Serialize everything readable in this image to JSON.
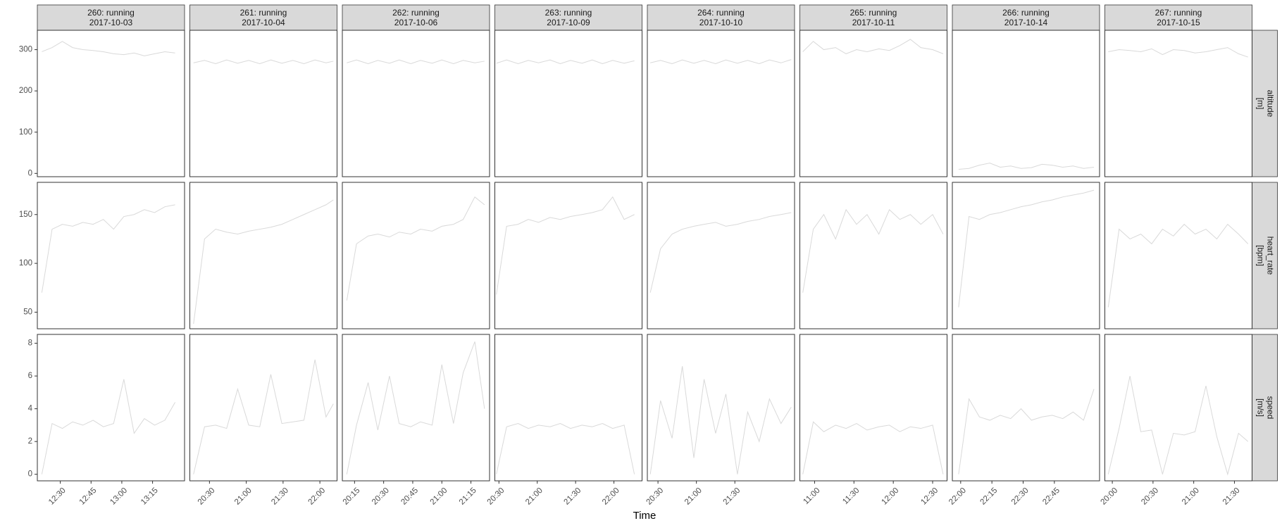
{
  "chart_data": {
    "type": "line",
    "x_label": "Time",
    "color": "#d9d9d9",
    "grid": false,
    "columns": [
      {
        "title": "260: running",
        "date": "2017-10-03",
        "xlim": [
          738.8,
          810.6
        ],
        "xticks": [
          {
            "value": 750,
            "label": "12:30"
          },
          {
            "value": 765,
            "label": "12:45"
          },
          {
            "value": 780,
            "label": "13:00"
          },
          {
            "value": 795,
            "label": "13:15"
          }
        ],
        "x": [
          741,
          746,
          751,
          756,
          761,
          766,
          771,
          776,
          781,
          786,
          791,
          796,
          801,
          806
        ]
      },
      {
        "title": "261: running",
        "date": "2017-10-04",
        "xlim": [
          1214,
          1334
        ],
        "xticks": [
          {
            "value": 1230,
            "label": "20:30"
          },
          {
            "value": 1260,
            "label": "21:00"
          },
          {
            "value": 1290,
            "label": "21:30"
          },
          {
            "value": 1320,
            "label": "22:00"
          }
        ],
        "x": [
          1217,
          1226,
          1235,
          1244,
          1253,
          1262,
          1271,
          1280,
          1289,
          1298,
          1307,
          1316,
          1325,
          1331
        ]
      },
      {
        "title": "262: running",
        "date": "2017-10-06",
        "xlim": [
          1208.7,
          1284.6
        ],
        "xticks": [
          {
            "value": 1215,
            "label": "20:15"
          },
          {
            "value": 1230,
            "label": "20:30"
          },
          {
            "value": 1245,
            "label": "20:45"
          },
          {
            "value": 1260,
            "label": "21:00"
          },
          {
            "value": 1275,
            "label": "21:15"
          }
        ],
        "x": [
          1211,
          1216,
          1222,
          1227,
          1233,
          1238,
          1244,
          1249,
          1255,
          1260,
          1266,
          1271,
          1277,
          1282
        ]
      },
      {
        "title": "263: running",
        "date": "2017-10-09",
        "xlim": [
          1226.8,
          1342
        ],
        "xticks": [
          {
            "value": 1230,
            "label": "20:30"
          },
          {
            "value": 1260,
            "label": "21:00"
          },
          {
            "value": 1290,
            "label": "21:30"
          },
          {
            "value": 1320,
            "label": "22:00"
          }
        ],
        "x": [
          1228,
          1236,
          1245,
          1253,
          1261,
          1270,
          1278,
          1286,
          1295,
          1303,
          1311,
          1319,
          1328,
          1336
        ]
      },
      {
        "title": "264: running",
        "date": "2017-10-10",
        "xlim": [
          1221.7,
          1336.6
        ],
        "xticks": [
          {
            "value": 1230,
            "label": "20:30"
          },
          {
            "value": 1260,
            "label": "21:00"
          },
          {
            "value": 1290,
            "label": "21:30"
          }
        ],
        "x": [
          1224,
          1232,
          1241,
          1249,
          1258,
          1266,
          1275,
          1283,
          1292,
          1300,
          1309,
          1317,
          1326,
          1334
        ]
      },
      {
        "title": "265: running",
        "date": "2017-10-11",
        "xlim": [
          648.75,
          761
        ],
        "xticks": [
          {
            "value": 660,
            "label": "11:00"
          },
          {
            "value": 690,
            "label": "11:30"
          },
          {
            "value": 720,
            "label": "12:00"
          },
          {
            "value": 750,
            "label": "12:30"
          }
        ],
        "x": [
          651,
          659,
          667,
          676,
          684,
          692,
          700,
          709,
          717,
          725,
          733,
          741,
          750,
          758
        ]
      },
      {
        "title": "266: running",
        "date": "2017-10-14",
        "xlim": [
          1316,
          1386.7
        ],
        "xticks": [
          {
            "value": 1320,
            "label": "22:00"
          },
          {
            "value": 1335,
            "label": "22:15"
          },
          {
            "value": 1350,
            "label": "22:30"
          },
          {
            "value": 1365,
            "label": "22:45"
          }
        ],
        "x": [
          1319,
          1324,
          1329,
          1334,
          1339,
          1344,
          1349,
          1354,
          1359,
          1364,
          1369,
          1374,
          1379,
          1384
        ]
      },
      {
        "title": "267: running",
        "date": "2017-10-15",
        "xlim": [
          1194.5,
          1303
        ],
        "xticks": [
          {
            "value": 1200,
            "label": "20:00"
          },
          {
            "value": 1230,
            "label": "20:30"
          },
          {
            "value": 1260,
            "label": "21:00"
          },
          {
            "value": 1290,
            "label": "21:30"
          }
        ],
        "x": [
          1197,
          1205,
          1213,
          1221,
          1229,
          1237,
          1245,
          1253,
          1261,
          1269,
          1277,
          1285,
          1293,
          1300
        ]
      }
    ],
    "rows": [
      {
        "strip": [
          "altitude",
          "[m]"
        ],
        "ylim": [
          -8,
          347
        ],
        "yticks": [
          0,
          100,
          200,
          300
        ],
        "panels": [
          [
            295,
            305,
            320,
            305,
            300,
            298,
            295,
            290,
            288,
            292,
            285,
            290,
            295,
            292
          ],
          [
            268,
            274,
            266,
            275,
            267,
            274,
            266,
            275,
            267,
            274,
            266,
            275,
            268,
            272
          ],
          [
            268,
            275,
            266,
            274,
            267,
            275,
            266,
            274,
            267,
            275,
            266,
            274,
            268,
            272
          ],
          [
            267,
            275,
            266,
            274,
            268,
            275,
            266,
            274,
            267,
            275,
            266,
            274,
            267,
            273
          ],
          [
            268,
            274,
            266,
            275,
            267,
            274,
            266,
            275,
            267,
            274,
            266,
            275,
            268,
            276
          ],
          [
            295,
            320,
            300,
            305,
            290,
            300,
            295,
            302,
            298,
            310,
            325,
            305,
            300,
            290
          ],
          [
            10,
            12,
            20,
            25,
            15,
            18,
            12,
            14,
            22,
            20,
            15,
            18,
            12,
            15
          ],
          [
            295,
            300,
            298,
            295,
            302,
            288,
            300,
            298,
            292,
            295,
            300,
            305,
            290,
            282
          ]
        ]
      },
      {
        "strip": [
          "heart_rate",
          "[bpm]"
        ],
        "ylim": [
          33,
          183
        ],
        "yticks": [
          50,
          100,
          150
        ],
        "panels": [
          [
            70,
            135,
            140,
            138,
            142,
            140,
            145,
            135,
            148,
            150,
            155,
            152,
            158,
            160
          ],
          [
            38,
            125,
            135,
            132,
            130,
            133,
            135,
            137,
            140,
            145,
            150,
            155,
            160,
            165
          ],
          [
            62,
            120,
            128,
            130,
            127,
            132,
            130,
            135,
            133,
            138,
            140,
            145,
            168,
            160
          ],
          [
            68,
            138,
            140,
            145,
            142,
            147,
            145,
            148,
            150,
            152,
            155,
            168,
            145,
            150
          ],
          [
            70,
            115,
            130,
            135,
            138,
            140,
            142,
            138,
            140,
            143,
            145,
            148,
            150,
            152
          ],
          [
            70,
            135,
            150,
            125,
            155,
            140,
            150,
            130,
            155,
            145,
            150,
            140,
            150,
            130
          ],
          [
            55,
            148,
            145,
            150,
            152,
            155,
            158,
            160,
            163,
            165,
            168,
            170,
            172,
            175
          ],
          [
            55,
            135,
            125,
            130,
            120,
            135,
            128,
            140,
            130,
            135,
            125,
            140,
            130,
            120
          ]
        ]
      },
      {
        "strip": [
          "speed",
          "[m/s]"
        ],
        "ylim": [
          -0.4,
          8.54
        ],
        "yticks": [
          0,
          2,
          4,
          6,
          8
        ],
        "panels": [
          [
            0,
            3.1,
            2.8,
            3.2,
            3.0,
            3.3,
            2.9,
            3.1,
            5.8,
            2.5,
            3.4,
            3.0,
            3.3,
            4.4
          ],
          [
            0,
            2.9,
            3.0,
            2.8,
            5.2,
            3.0,
            2.9,
            6.1,
            3.1,
            3.2,
            3.3,
            7.0,
            3.5,
            4.3
          ],
          [
            0,
            3.0,
            5.6,
            2.7,
            6.0,
            3.1,
            2.9,
            3.2,
            3.0,
            6.7,
            3.1,
            6.2,
            8.1,
            4.0
          ],
          [
            0,
            2.9,
            3.1,
            2.8,
            3.0,
            2.9,
            3.1,
            2.8,
            3.0,
            2.9,
            3.1,
            2.8,
            3.0,
            0
          ],
          [
            0,
            4.5,
            2.2,
            6.6,
            1.0,
            5.8,
            2.5,
            4.9,
            0,
            3.8,
            2.0,
            4.6,
            3.1,
            4.1
          ],
          [
            0,
            3.2,
            2.6,
            3.0,
            2.8,
            3.1,
            2.7,
            2.9,
            3.0,
            2.6,
            2.9,
            2.8,
            3.0,
            0
          ],
          [
            0,
            4.6,
            3.5,
            3.3,
            3.6,
            3.4,
            4.0,
            3.3,
            3.5,
            3.6,
            3.4,
            3.8,
            3.3,
            5.2
          ],
          [
            0,
            2.8,
            6.0,
            2.6,
            2.7,
            0,
            2.5,
            2.4,
            2.6,
            5.4,
            2.3,
            0,
            2.5,
            2.0
          ]
        ]
      }
    ]
  }
}
